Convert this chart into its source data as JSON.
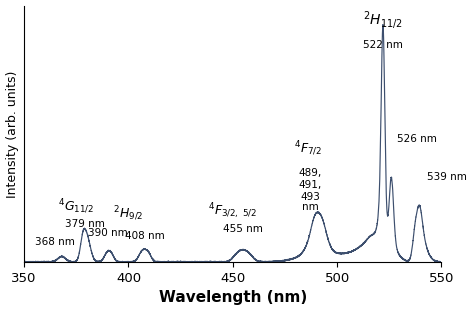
{
  "xlabel": "Wavelength (nm)",
  "ylabel": "Intensity (arb. units)",
  "xlim": [
    350,
    550
  ],
  "ylim": [
    0,
    1.08
  ],
  "line_color": "#3d4f6e",
  "line_width": 0.85,
  "background_color": "#ffffff",
  "xticks": [
    350,
    400,
    450,
    500,
    550
  ],
  "xlabel_fontsize": 11,
  "xlabel_fontweight": "bold",
  "ylabel_fontsize": 9,
  "annot_fontsize_bold": 9,
  "annot_fontsize_small": 7.5
}
